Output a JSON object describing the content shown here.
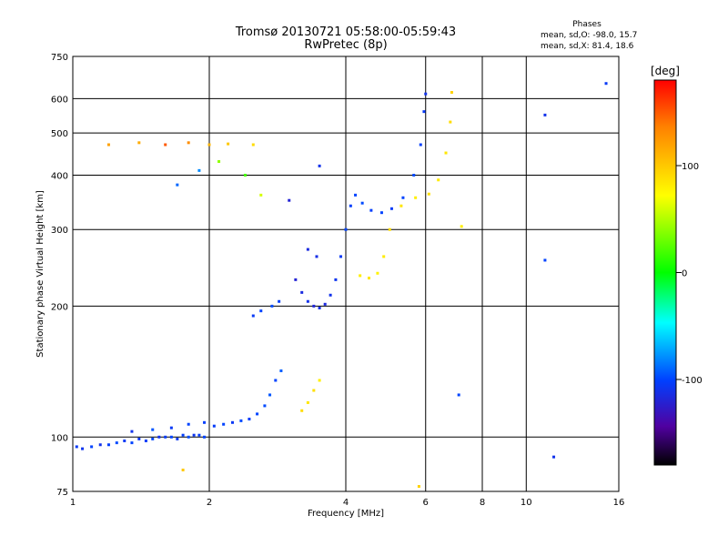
{
  "chart_data": {
    "type": "scatter",
    "title": "Tromsø 20130721 05:58:00-05:59:43",
    "subtitle": "RwPretec (8p)",
    "phases_header": "Phases",
    "phases_line1": "mean, sd,O: -98.0, 15.7",
    "phases_line2": "mean, sd,X:  81.4, 18.6",
    "xlabel": "Frequency [MHz]",
    "ylabel": "Stationary phase Virtual Height [km]",
    "x_scale": "log",
    "y_scale": "log",
    "xlim": [
      1,
      16
    ],
    "ylim": [
      75,
      750
    ],
    "x_ticks": [
      1,
      2,
      4,
      6,
      8,
      10,
      16
    ],
    "y_ticks": [
      75,
      100,
      200,
      300,
      400,
      500,
      600,
      750
    ],
    "grid": true,
    "colorbar": {
      "label": "[deg]",
      "range": [
        -180,
        180
      ],
      "ticks": [
        100,
        0,
        -100
      ]
    },
    "series": [
      {
        "values": [
          {
            "x": 1.02,
            "y": 95,
            "c": -105
          },
          {
            "x": 1.05,
            "y": 94,
            "c": -108
          },
          {
            "x": 1.1,
            "y": 95,
            "c": -100
          },
          {
            "x": 1.15,
            "y": 96,
            "c": -110
          },
          {
            "x": 1.2,
            "y": 96,
            "c": -102
          },
          {
            "x": 1.25,
            "y": 97,
            "c": -98
          },
          {
            "x": 1.3,
            "y": 98,
            "c": -105
          },
          {
            "x": 1.35,
            "y": 97,
            "c": -100
          },
          {
            "x": 1.4,
            "y": 99,
            "c": -107
          },
          {
            "x": 1.45,
            "y": 98,
            "c": -103
          },
          {
            "x": 1.5,
            "y": 99,
            "c": -99
          },
          {
            "x": 1.55,
            "y": 100,
            "c": -110
          },
          {
            "x": 1.6,
            "y": 100,
            "c": -104
          },
          {
            "x": 1.65,
            "y": 100,
            "c": -100
          },
          {
            "x": 1.7,
            "y": 99,
            "c": -106
          },
          {
            "x": 1.75,
            "y": 101,
            "c": -102
          },
          {
            "x": 1.8,
            "y": 100,
            "c": -98
          },
          {
            "x": 1.85,
            "y": 101,
            "c": -108
          },
          {
            "x": 1.9,
            "y": 101,
            "c": -103
          },
          {
            "x": 1.95,
            "y": 100,
            "c": -100
          },
          {
            "x": 1.35,
            "y": 103,
            "c": -110
          },
          {
            "x": 1.5,
            "y": 104,
            "c": -95
          },
          {
            "x": 1.65,
            "y": 105,
            "c": -105
          },
          {
            "x": 1.8,
            "y": 107,
            "c": -100
          },
          {
            "x": 1.95,
            "y": 108,
            "c": -102
          },
          {
            "x": 2.05,
            "y": 106,
            "c": -104
          },
          {
            "x": 2.15,
            "y": 107,
            "c": -100
          },
          {
            "x": 2.25,
            "y": 108,
            "c": -106
          },
          {
            "x": 2.35,
            "y": 109,
            "c": -98
          },
          {
            "x": 2.45,
            "y": 110,
            "c": -103
          },
          {
            "x": 2.55,
            "y": 113,
            "c": -100
          },
          {
            "x": 2.65,
            "y": 118,
            "c": -98
          },
          {
            "x": 2.72,
            "y": 125,
            "c": -95
          },
          {
            "x": 2.8,
            "y": 135,
            "c": -100
          },
          {
            "x": 2.88,
            "y": 142,
            "c": -92
          },
          {
            "x": 2.5,
            "y": 190,
            "c": -105
          },
          {
            "x": 2.6,
            "y": 195,
            "c": -100
          },
          {
            "x": 2.75,
            "y": 200,
            "c": -98
          },
          {
            "x": 2.85,
            "y": 205,
            "c": -102
          },
          {
            "x": 3.2,
            "y": 115,
            "c": 90
          },
          {
            "x": 3.3,
            "y": 120,
            "c": 85
          },
          {
            "x": 3.4,
            "y": 128,
            "c": 88
          },
          {
            "x": 3.5,
            "y": 135,
            "c": 80
          },
          {
            "x": 3.1,
            "y": 230,
            "c": -120
          },
          {
            "x": 3.2,
            "y": 215,
            "c": -115
          },
          {
            "x": 3.3,
            "y": 205,
            "c": -110
          },
          {
            "x": 3.4,
            "y": 200,
            "c": -118
          },
          {
            "x": 3.5,
            "y": 198,
            "c": -112
          },
          {
            "x": 3.6,
            "y": 202,
            "c": -116
          },
          {
            "x": 3.7,
            "y": 212,
            "c": -110
          },
          {
            "x": 3.8,
            "y": 230,
            "c": -108
          },
          {
            "x": 3.9,
            "y": 260,
            "c": -105
          },
          {
            "x": 4.0,
            "y": 300,
            "c": -100
          },
          {
            "x": 4.1,
            "y": 340,
            "c": -102
          },
          {
            "x": 4.2,
            "y": 360,
            "c": -100
          },
          {
            "x": 4.35,
            "y": 345,
            "c": -98
          },
          {
            "x": 4.55,
            "y": 332,
            "c": -102
          },
          {
            "x": 4.8,
            "y": 328,
            "c": -100
          },
          {
            "x": 5.05,
            "y": 335,
            "c": -104
          },
          {
            "x": 5.35,
            "y": 355,
            "c": -100
          },
          {
            "x": 5.65,
            "y": 400,
            "c": -98
          },
          {
            "x": 5.85,
            "y": 470,
            "c": -102
          },
          {
            "x": 5.95,
            "y": 560,
            "c": -105
          },
          {
            "x": 6.0,
            "y": 615,
            "c": -110
          },
          {
            "x": 3.3,
            "y": 270,
            "c": -115
          },
          {
            "x": 3.45,
            "y": 260,
            "c": -112
          },
          {
            "x": 4.3,
            "y": 235,
            "c": 80
          },
          {
            "x": 4.5,
            "y": 232,
            "c": 85
          },
          {
            "x": 4.7,
            "y": 238,
            "c": 78
          },
          {
            "x": 4.85,
            "y": 260,
            "c": 82
          },
          {
            "x": 5.0,
            "y": 300,
            "c": 90
          },
          {
            "x": 5.3,
            "y": 340,
            "c": 85
          },
          {
            "x": 5.7,
            "y": 355,
            "c": 80
          },
          {
            "x": 6.1,
            "y": 362,
            "c": 88
          },
          {
            "x": 6.4,
            "y": 390,
            "c": 82
          },
          {
            "x": 6.65,
            "y": 450,
            "c": 85
          },
          {
            "x": 6.8,
            "y": 530,
            "c": 90
          },
          {
            "x": 6.85,
            "y": 620,
            "c": 95
          },
          {
            "x": 1.2,
            "y": 470,
            "c": 120
          },
          {
            "x": 1.4,
            "y": 475,
            "c": 115
          },
          {
            "x": 1.6,
            "y": 470,
            "c": 150
          },
          {
            "x": 1.8,
            "y": 475,
            "c": 130
          },
          {
            "x": 2.0,
            "y": 470,
            "c": 110
          },
          {
            "x": 2.2,
            "y": 472,
            "c": 100
          },
          {
            "x": 2.5,
            "y": 470,
            "c": 90
          },
          {
            "x": 1.7,
            "y": 380,
            "c": -90
          },
          {
            "x": 1.9,
            "y": 410,
            "c": -80
          },
          {
            "x": 2.1,
            "y": 430,
            "c": 40
          },
          {
            "x": 2.4,
            "y": 400,
            "c": 20
          },
          {
            "x": 2.6,
            "y": 360,
            "c": 60
          },
          {
            "x": 3.0,
            "y": 350,
            "c": -120
          },
          {
            "x": 3.5,
            "y": 420,
            "c": -110
          },
          {
            "x": 7.2,
            "y": 305,
            "c": 80
          },
          {
            "x": 7.1,
            "y": 125,
            "c": -100
          },
          {
            "x": 11.0,
            "y": 550,
            "c": -110
          },
          {
            "x": 11.0,
            "y": 255,
            "c": -100
          },
          {
            "x": 11.5,
            "y": 90,
            "c": -110
          },
          {
            "x": 15.0,
            "y": 650,
            "c": -105
          },
          {
            "x": 1.75,
            "y": 84,
            "c": 100
          },
          {
            "x": 5.8,
            "y": 77,
            "c": 95
          }
        ]
      }
    ]
  }
}
